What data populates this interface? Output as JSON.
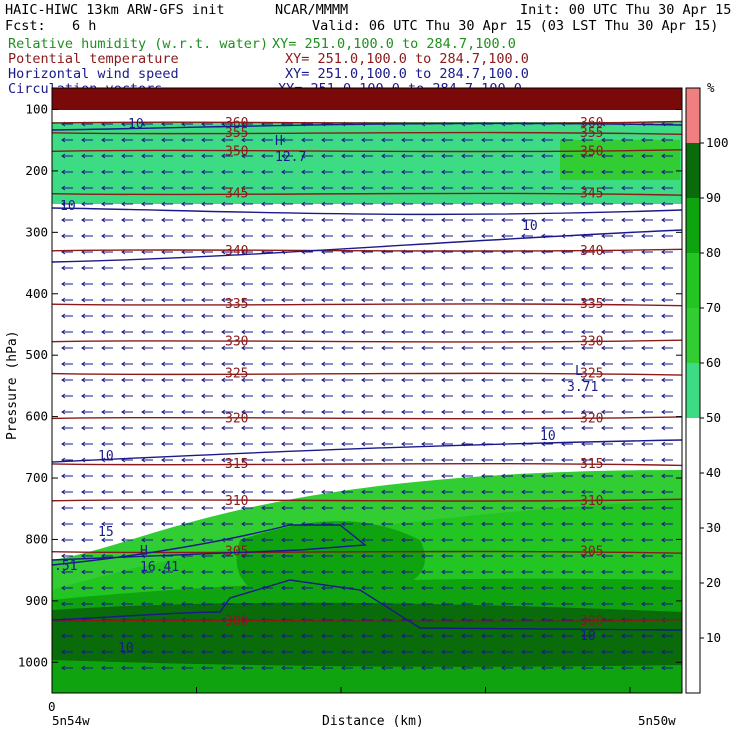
{
  "header": {
    "model": "HAIC-HIWC 13km ARW-GFS init",
    "org": "NCAR/MMMM",
    "init": "Init: 00 UTC Thu 30 Apr 15",
    "fcst_label": "Fcst:",
    "fcst_value": "6 h",
    "valid": "Valid: 06 UTC Thu 30 Apr 15 (03 LST Thu 30 Apr 15)"
  },
  "fields": [
    {
      "name": "Relative humidity (w.r.t. water)",
      "xy": "XY= 251.0,100.0 to 284.7,100.0",
      "color": "#1f8f1f"
    },
    {
      "name": "Potential temperature",
      "xy": "XY= 251.0,100.0 to 284.7,100.0",
      "color": "#8b1a1a"
    },
    {
      "name": "Horizontal wind speed",
      "xy": "XY= 251.0,100.0 to 284.7,100.0",
      "color": "#1a1a8b"
    },
    {
      "name": "Circulation vectors",
      "xy": "XY= 251.0,100.0 to 284.7,100.0",
      "color": "#1a1a8b"
    }
  ],
  "chart_data": {
    "type": "heatmap",
    "xlabel": "Distance (km)",
    "ylabel": "Pressure (hPa)",
    "x_tick_zero": "0",
    "x_left_label": "5n54w",
    "x_right_label": "5n50w",
    "yticks": [
      100,
      200,
      300,
      400,
      500,
      600,
      700,
      800,
      900,
      1000
    ],
    "ylim": [
      1050,
      65
    ],
    "colorbar": {
      "unit": "%",
      "ticks": [
        10,
        20,
        30,
        40,
        50,
        60,
        70,
        80,
        90,
        100
      ],
      "bins": [
        {
          "from": 50,
          "to": 60,
          "color": "#3ddc84"
        },
        {
          "from": 60,
          "to": 70,
          "color": "#32cd32"
        },
        {
          "from": 70,
          "to": 80,
          "color": "#22c522"
        },
        {
          "from": 80,
          "to": 90,
          "color": "#0fa30f"
        },
        {
          "from": 90,
          "to": 100,
          "color": "#0a6b0a"
        },
        {
          "from": 100,
          "to": 110,
          "color": "#f08080"
        }
      ]
    },
    "theta_contours": [
      {
        "label": "360",
        "p": 122
      },
      {
        "label": "355",
        "p": 138
      },
      {
        "label": "350",
        "p": 168
      },
      {
        "label": "345",
        "p": 237
      },
      {
        "label": "340",
        "p": 330
      },
      {
        "label": "335",
        "p": 417
      },
      {
        "label": "330",
        "p": 478
      },
      {
        "label": "325",
        "p": 530
      },
      {
        "label": "320",
        "p": 603
      },
      {
        "label": "315",
        "p": 677
      },
      {
        "label": "310",
        "p": 737
      },
      {
        "label": "305",
        "p": 820
      },
      {
        "label": "300",
        "p": 933
      }
    ],
    "wind_speed_labels": [
      "10",
      "10",
      "10",
      "10",
      "10",
      "15",
      "10",
      "10"
    ],
    "wind_speed_highs": [
      {
        "mark": "H",
        "value": "12.7"
      },
      {
        "mark": "H",
        "value": "16.41"
      }
    ],
    "wind_speed_lows": [
      {
        "mark": "L",
        "value": "3.71"
      }
    ],
    "edge_value": ".51"
  }
}
